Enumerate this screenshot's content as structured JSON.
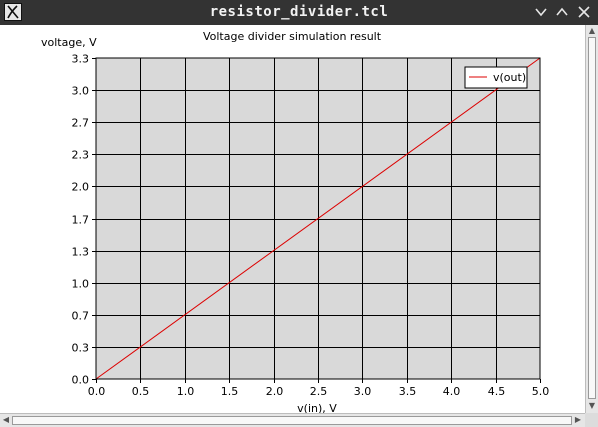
{
  "window": {
    "title": "resistor_divider.tcl"
  },
  "chart_data": {
    "type": "line",
    "title": "Voltage divider simulation result",
    "xlabel": "v(in), V",
    "ylabel": "voltage, V",
    "xlim": [
      0.0,
      5.0
    ],
    "ylim": [
      0.0,
      3.3
    ],
    "x_ticks": [
      "0.0",
      "0.5",
      "1.0",
      "1.5",
      "2.0",
      "2.5",
      "3.0",
      "3.5",
      "4.0",
      "4.5",
      "5.0"
    ],
    "y_ticks": [
      "0.0",
      "0.3",
      "0.7",
      "1.0",
      "1.3",
      "1.7",
      "2.0",
      "2.3",
      "2.7",
      "3.0",
      "3.3"
    ],
    "grid": true,
    "legend_position": "top-right",
    "series": [
      {
        "name": "v(out)",
        "color": "#dd0000",
        "x": [
          0.0,
          5.0
        ],
        "y": [
          0.0,
          3.3
        ]
      }
    ]
  },
  "colors": {
    "titlebar": "#333333",
    "plot_background": "#d9d9d9",
    "grid": "#000000"
  }
}
